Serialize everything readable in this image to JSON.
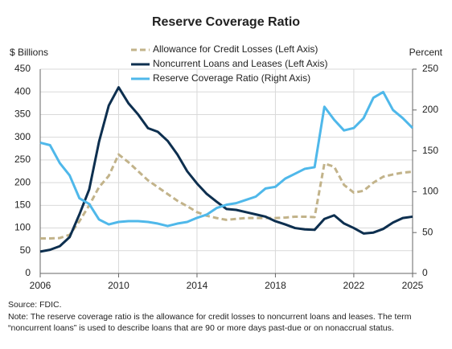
{
  "chart_data": {
    "type": "line",
    "title": "Reserve Coverage Ratio",
    "ylabel": "$ Billions",
    "y2label": "Percent",
    "x": [
      2006,
      2006.5,
      2007,
      2007.5,
      2008,
      2008.5,
      2009,
      2009.5,
      2010,
      2010.5,
      2011,
      2011.5,
      2012,
      2012.5,
      2013,
      2013.5,
      2014,
      2014.5,
      2015,
      2015.5,
      2016,
      2016.5,
      2017,
      2017.5,
      2018,
      2018.5,
      2019,
      2019.5,
      2020,
      2020.5,
      2021,
      2021.5,
      2022,
      2022.5,
      2023,
      2023.5,
      2024,
      2024.5,
      2025
    ],
    "series": [
      {
        "name": "Allowance for Credit Losses (Left Axis)",
        "color": "#c2b38a",
        "style": "dashed",
        "values": [
          77,
          77,
          78,
          85,
          115,
          150,
          190,
          215,
          262,
          245,
          225,
          205,
          190,
          175,
          160,
          148,
          135,
          127,
          122,
          118,
          120,
          122,
          122,
          122,
          122,
          123,
          125,
          125,
          124,
          242,
          235,
          195,
          178,
          182,
          200,
          213,
          218,
          222,
          224
        ]
      },
      {
        "name": "Noncurrent Loans and Leases (Left Axis)",
        "color": "#0d2f4f",
        "style": "solid",
        "values": [
          48,
          52,
          60,
          80,
          130,
          185,
          290,
          370,
          410,
          375,
          350,
          320,
          312,
          292,
          262,
          225,
          198,
          175,
          158,
          142,
          140,
          135,
          130,
          125,
          115,
          108,
          100,
          97,
          96,
          120,
          128,
          110,
          100,
          88,
          90,
          98,
          112,
          122,
          125
        ]
      },
      {
        "name": "Reserve Coverage Ratio (Right Axis)",
        "color": "#4fb8ea",
        "style": "solid",
        "axis": "y2",
        "values": [
          160,
          157,
          135,
          120,
          92,
          85,
          66,
          60,
          63,
          64,
          64,
          63,
          61,
          58,
          61,
          63,
          68,
          72,
          80,
          84,
          86,
          90,
          94,
          104,
          106,
          116,
          122,
          128,
          130,
          204,
          188,
          175,
          178,
          190,
          215,
          222,
          200,
          190,
          178
        ]
      }
    ],
    "xlim": [
      2006,
      2025
    ],
    "xticks": [
      2006,
      2010,
      2014,
      2018,
      2022,
      2025
    ],
    "ylim": [
      0,
      450
    ],
    "yticks": [
      0,
      50,
      100,
      150,
      200,
      250,
      300,
      350,
      400,
      450
    ],
    "y2lim": [
      0,
      250
    ],
    "y2ticks": [
      0,
      50,
      100,
      150,
      200,
      250
    ],
    "grid": true,
    "legend": "top",
    "source": "Source: FDIC.",
    "note": "Note: The reserve coverage ratio is the allowance for credit losses to noncurrent loans and leases. The term “noncurrent loans” is used to describe loans that are 90 or more days past-due or on nonaccrual status."
  }
}
